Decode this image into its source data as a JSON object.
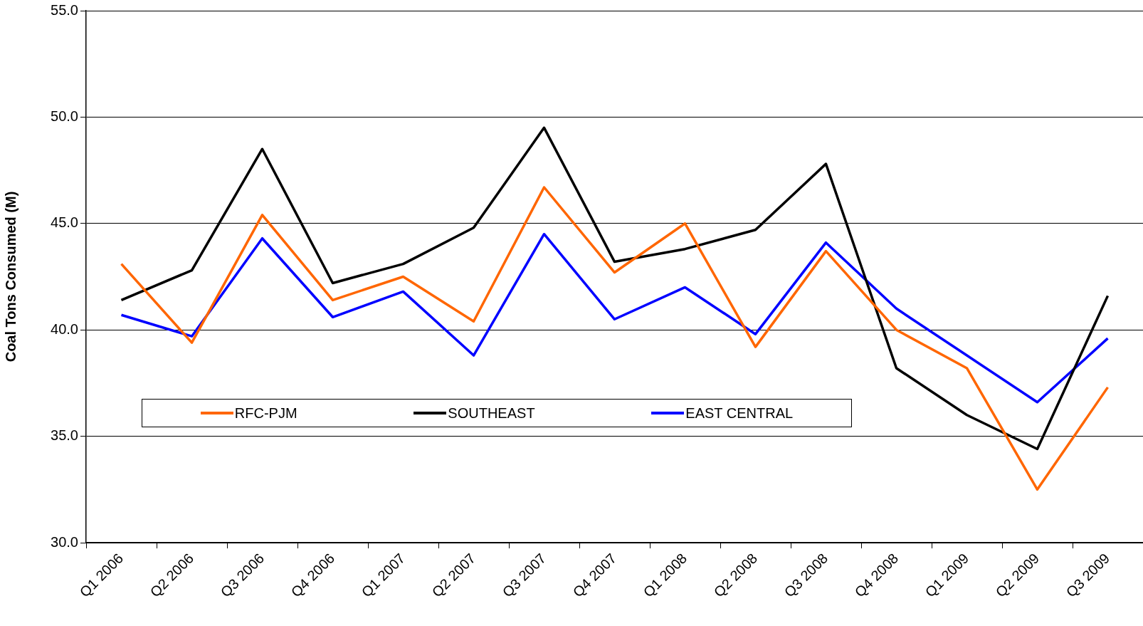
{
  "chart_data": {
    "type": "line",
    "ylabel": "Coal Tons Consumed (M)",
    "categories": [
      "Q1 2006",
      "Q2 2006",
      "Q3 2006",
      "Q4 2006",
      "Q1 2007",
      "Q2 2007",
      "Q3 2007",
      "Q4 2007",
      "Q1 2008",
      "Q2 2008",
      "Q3 2008",
      "Q4 2008",
      "Q1 2009",
      "Q2 2009",
      "Q3 2009"
    ],
    "series": [
      {
        "name": "RFC-PJM",
        "color": "#ff6600",
        "values": [
          43.1,
          39.4,
          45.4,
          41.4,
          42.5,
          40.4,
          46.7,
          42.7,
          45.0,
          39.2,
          43.7,
          40.0,
          38.2,
          32.5,
          37.3
        ]
      },
      {
        "name": "SOUTHEAST",
        "color": "#000000",
        "values": [
          41.4,
          42.8,
          48.5,
          42.2,
          43.1,
          44.8,
          49.5,
          43.2,
          43.8,
          44.7,
          47.8,
          38.2,
          36.0,
          34.4,
          41.6
        ]
      },
      {
        "name": "EAST CENTRAL",
        "color": "#0000ff",
        "values": [
          40.7,
          39.7,
          44.3,
          40.6,
          41.8,
          38.8,
          44.5,
          40.5,
          42.0,
          39.8,
          44.1,
          41.0,
          38.8,
          36.6,
          39.6
        ]
      }
    ],
    "ylim": [
      30,
      55
    ],
    "yticks": [
      {
        "value": 30,
        "label": "30.0"
      },
      {
        "value": 35,
        "label": "35.0"
      },
      {
        "value": 40,
        "label": "40.0"
      },
      {
        "value": 45,
        "label": "45.0"
      },
      {
        "value": 50,
        "label": "50.0"
      },
      {
        "value": 55,
        "label": "55.0"
      }
    ],
    "grid": "y",
    "legend": "bottom left",
    "marker": "none",
    "line_style": "solid"
  }
}
